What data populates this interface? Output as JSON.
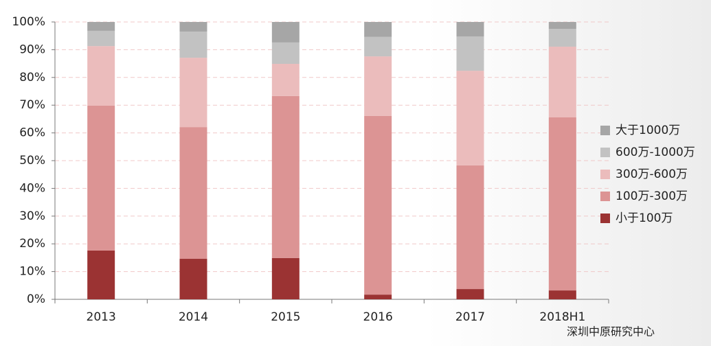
{
  "chart_data": {
    "type": "stacked-bar",
    "categories": [
      "2013",
      "2014",
      "2015",
      "2016",
      "2017",
      "2018H1"
    ],
    "series": [
      {
        "name": "小于100万",
        "color": "#9b3333",
        "values": [
          17.6,
          14.6,
          14.9,
          1.7,
          3.7,
          3.2
        ]
      },
      {
        "name": "100万-300万",
        "color": "#dc9494",
        "values": [
          52.2,
          47.5,
          58.4,
          64.4,
          44.6,
          62.4
        ]
      },
      {
        "name": "300万-600万",
        "color": "#ebbcbc",
        "values": [
          21.5,
          25.0,
          11.6,
          21.5,
          34.1,
          25.5
        ]
      },
      {
        "name": "600万-1000万",
        "color": "#c2c2c2",
        "values": [
          5.5,
          9.4,
          7.7,
          7.0,
          12.4,
          6.4
        ]
      },
      {
        "name": "大于1000万",
        "color": "#a6a6a6",
        "values": [
          3.2,
          3.5,
          7.4,
          5.4,
          5.2,
          2.5
        ]
      }
    ],
    "ylim": [
      0,
      100
    ],
    "yticks": [
      {
        "value": 0,
        "label": "0%"
      },
      {
        "value": 10,
        "label": "10%"
      },
      {
        "value": 20,
        "label": "20%"
      },
      {
        "value": 30,
        "label": "30%"
      },
      {
        "value": 40,
        "label": "40%"
      },
      {
        "value": 50,
        "label": "50%"
      },
      {
        "value": 60,
        "label": "60%"
      },
      {
        "value": 70,
        "label": "70%"
      },
      {
        "value": 80,
        "label": "80%"
      },
      {
        "value": 90,
        "label": "90%"
      },
      {
        "value": 100,
        "label": "100%"
      }
    ],
    "grid": true,
    "legend": "right",
    "source": "深圳中原研究中心"
  }
}
